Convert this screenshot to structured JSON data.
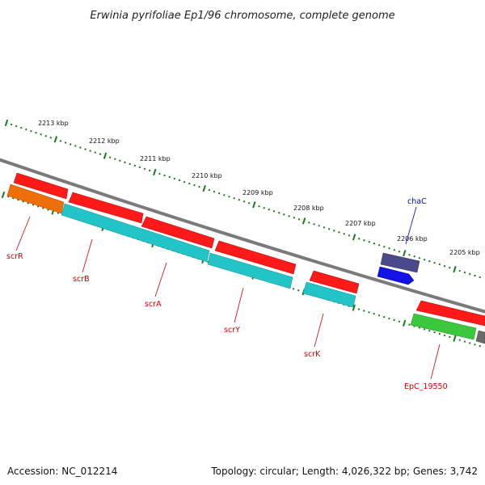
{
  "title": "Erwinia pyrifoliae Ep1/96 chromosome, complete genome",
  "ruler": {
    "color": "#1a7a1a",
    "ticks": [
      "2213 kbp",
      "2212 kbp",
      "2211 kbp",
      "2210 kbp",
      "2209 kbp",
      "2208 kbp",
      "2207 kbp",
      "2206 kbp",
      "2205 kbp"
    ]
  },
  "genes": [
    {
      "name": "scrR",
      "color": "#ee6f0a"
    },
    {
      "name": "scrB",
      "color": "#22c4c8"
    },
    {
      "name": "scrA",
      "color": "#22c4c8"
    },
    {
      "name": "scrY",
      "color": "#22c4c8"
    },
    {
      "name": "scrK",
      "color": "#22c4c8"
    },
    {
      "name": "chaC",
      "color": "#1212e6"
    },
    {
      "name": "EpC_19550",
      "color": "#3cc83c"
    }
  ],
  "label_colors": {
    "default": "#cc0000",
    "chaC": "#0000cc"
  },
  "footer": {
    "accession": "Accession: NC_012214",
    "stats": "Topology: circular; Length: 4,026,322 bp; Genes: 3,742"
  }
}
